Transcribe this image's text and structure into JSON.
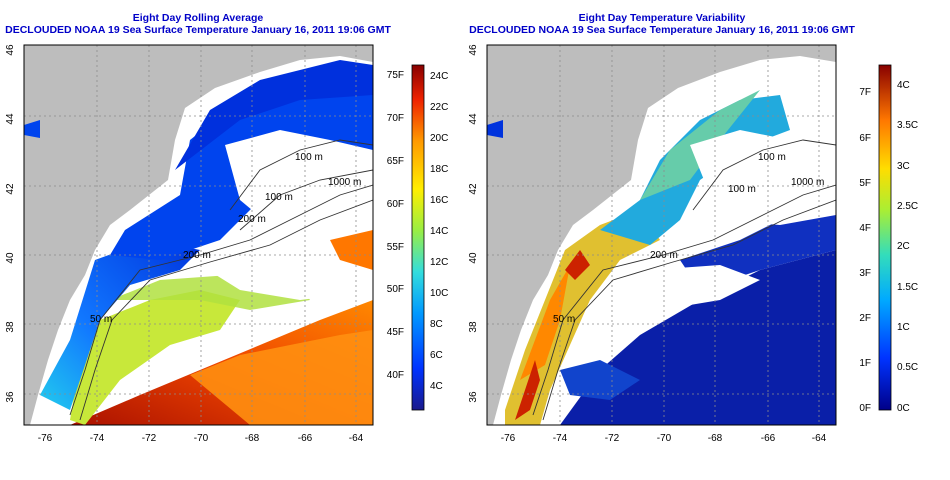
{
  "left_panel": {
    "title_line1": "Eight Day Rolling Average",
    "title_line2": "DECLOUDED NOAA 19 Sea Surface Temperature January 16, 2011 19:06 GMT",
    "colorbar_f": [
      "75F",
      "70F",
      "65F",
      "60F",
      "55F",
      "50F",
      "45F",
      "40F"
    ],
    "colorbar_c": [
      "24C",
      "22C",
      "20C",
      "18C",
      "16C",
      "14C",
      "12C",
      "10C",
      "8C",
      "6C",
      "4C"
    ],
    "contours": [
      "100 m",
      "1000 m",
      "100 m",
      "200 m",
      "200 m",
      "50 m"
    ]
  },
  "right_panel": {
    "title_line1": "Eight Day Temperature Variability",
    "title_line2": "DECLOUDED NOAA 19 Sea Surface Temperature January 16, 2011 19:06 GMT",
    "colorbar_f": [
      "7F",
      "6F",
      "5F",
      "4F",
      "3F",
      "2F",
      "1F",
      "0F"
    ],
    "colorbar_c": [
      "4C",
      "3.5C",
      "3C",
      "2.5C",
      "2C",
      "1.5C",
      "1C",
      "0.5C",
      "0C"
    ],
    "contours": [
      "100 m",
      "1000 m",
      "100 m",
      "200 m",
      "50 m"
    ]
  },
  "axes": {
    "lon_ticks": [
      "-76",
      "-74",
      "-72",
      "-70",
      "-68",
      "-66",
      "-64"
    ],
    "lat_ticks": [
      "46",
      "44",
      "42",
      "40",
      "38",
      "36"
    ]
  },
  "colors": {
    "title": "#0000c8",
    "land": "#bdbdbd",
    "no_data": "#ffffff"
  }
}
